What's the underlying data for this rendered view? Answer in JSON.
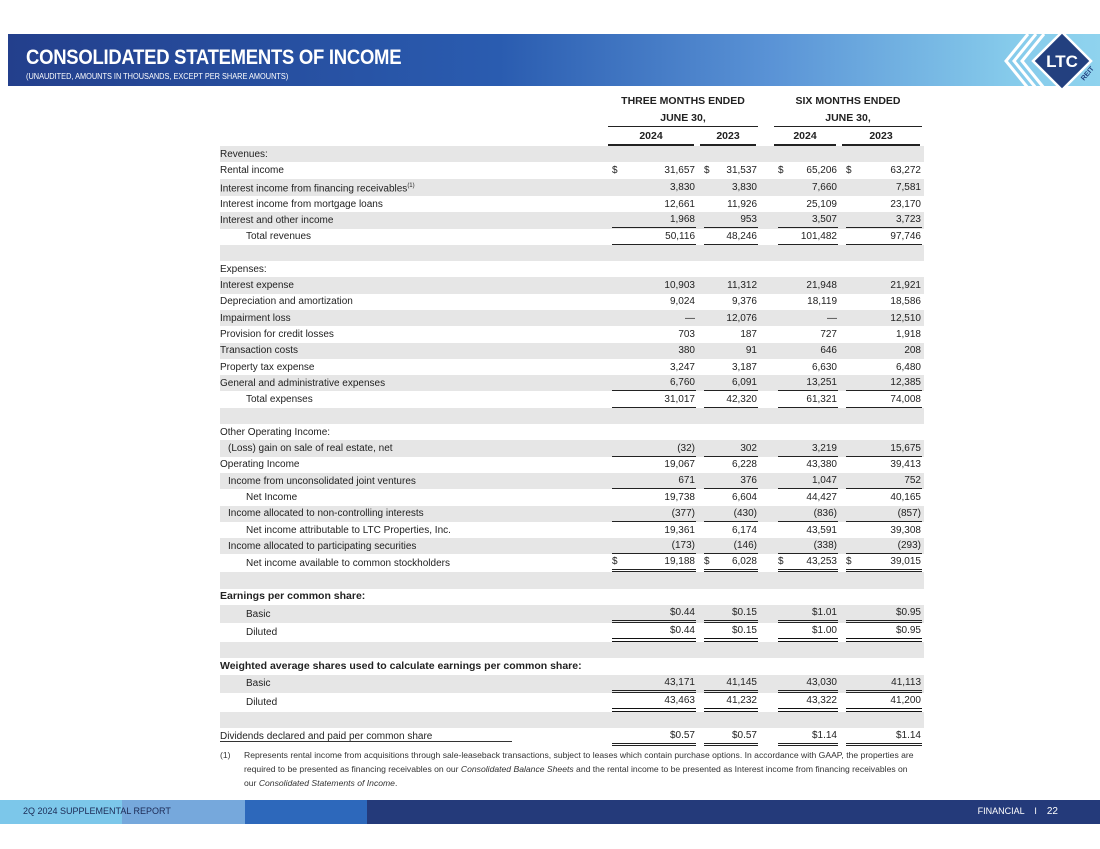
{
  "header": {
    "title": "CONSOLIDATED STATEMENTS OF INCOME",
    "subtitle": "(UNAUDITED, AMOUNTS IN THOUSANDS, EXCEPT PER SHARE AMOUNTS)",
    "logo_text": "LTC",
    "logo_subtext": "REIT"
  },
  "colors": {
    "banner_dark": "#233f8c",
    "banner_light": "#8fd3ee",
    "row_shade": "#e6e6e6",
    "footer_navy": "#243a7a"
  },
  "columns": {
    "group1_line1": "THREE MONTHS ENDED",
    "group1_line2": "JUNE 30,",
    "group2_line1": "SIX MONTHS ENDED",
    "group2_line2": "JUNE 30,",
    "years": [
      "2024",
      "2023",
      "2024",
      "2023"
    ]
  },
  "rows": [
    {
      "label": "Revenues:",
      "indent": 0,
      "values": [
        "",
        "",
        "",
        ""
      ]
    },
    {
      "label": "Rental income",
      "indent": 0,
      "dollar": true,
      "values": [
        "31,657",
        "31,537",
        "65,206",
        "63,272"
      ]
    },
    {
      "label": "Interest income from financing receivables",
      "sup": "(1)",
      "indent": 0,
      "values": [
        "3,830",
        "3,830",
        "7,660",
        "7,581"
      ]
    },
    {
      "label": "Interest income from mortgage loans",
      "indent": 0,
      "values": [
        "12,661",
        "11,926",
        "25,109",
        "23,170"
      ]
    },
    {
      "label": "Interest and other income",
      "indent": 0,
      "rule": "single",
      "values": [
        "1,968",
        "953",
        "3,507",
        "3,723"
      ]
    },
    {
      "label": "Total revenues",
      "indent": 2,
      "rule": "single",
      "values": [
        "50,116",
        "48,246",
        "101,482",
        "97,746"
      ]
    },
    {
      "label": "",
      "indent": 0,
      "values": [
        "",
        "",
        "",
        ""
      ]
    },
    {
      "label": "Expenses:",
      "indent": 0,
      "values": [
        "",
        "",
        "",
        ""
      ]
    },
    {
      "label": "Interest expense",
      "indent": 0,
      "values": [
        "10,903",
        "11,312",
        "21,948",
        "21,921"
      ]
    },
    {
      "label": "Depreciation and amortization",
      "indent": 0,
      "values": [
        "9,024",
        "9,376",
        "18,119",
        "18,586"
      ]
    },
    {
      "label": "Impairment loss",
      "indent": 0,
      "values": [
        "—",
        "12,076",
        "—",
        "12,510"
      ]
    },
    {
      "label": "Provision for credit losses",
      "indent": 0,
      "values": [
        "703",
        "187",
        "727",
        "1,918"
      ]
    },
    {
      "label": "Transaction costs",
      "indent": 0,
      "values": [
        "380",
        "91",
        "646",
        "208"
      ]
    },
    {
      "label": "Property tax expense",
      "indent": 0,
      "values": [
        "3,247",
        "3,187",
        "6,630",
        "6,480"
      ]
    },
    {
      "label": "General and administrative expenses",
      "indent": 0,
      "rule": "single",
      "values": [
        "6,760",
        "6,091",
        "13,251",
        "12,385"
      ]
    },
    {
      "label": "Total expenses",
      "indent": 2,
      "rule": "single",
      "values": [
        "31,017",
        "42,320",
        "61,321",
        "74,008"
      ]
    },
    {
      "label": "",
      "indent": 0,
      "values": [
        "",
        "",
        "",
        ""
      ]
    },
    {
      "label": "Other Operating Income:",
      "indent": 0,
      "values": [
        "",
        "",
        "",
        ""
      ]
    },
    {
      "label": "(Loss) gain on sale of real estate, net",
      "indent": 1,
      "rule": "single",
      "values": [
        "(32)",
        "302",
        "3,219",
        "15,675"
      ]
    },
    {
      "label": "Operating Income",
      "indent": 0,
      "values": [
        "19,067",
        "6,228",
        "43,380",
        "39,413"
      ]
    },
    {
      "label": "Income from unconsolidated joint ventures",
      "indent": 1,
      "rule": "single",
      "values": [
        "671",
        "376",
        "1,047",
        "752"
      ]
    },
    {
      "label": "Net Income",
      "indent": 2,
      "values": [
        "19,738",
        "6,604",
        "44,427",
        "40,165"
      ]
    },
    {
      "label": "Income allocated to non-controlling interests",
      "indent": 1,
      "rule": "single",
      "values": [
        "(377)",
        "(430)",
        "(836)",
        "(857)"
      ]
    },
    {
      "label": "Net income attributable to LTC Properties, Inc.",
      "indent": 2,
      "values": [
        "19,361",
        "6,174",
        "43,591",
        "39,308"
      ]
    },
    {
      "label": "Income allocated to participating securities",
      "indent": 1,
      "rule": "single",
      "values": [
        "(173)",
        "(146)",
        "(338)",
        "(293)"
      ]
    },
    {
      "label": "Net income available to common stockholders",
      "indent": 2,
      "dollar": true,
      "rule": "double",
      "values": [
        "19,188",
        "6,028",
        "43,253",
        "39,015"
      ]
    },
    {
      "label": "",
      "indent": 0,
      "values": [
        "",
        "",
        "",
        ""
      ]
    },
    {
      "label": "Earnings per common share:",
      "indent": 0,
      "bold": true,
      "values": [
        "",
        "",
        "",
        ""
      ]
    },
    {
      "label": "Basic",
      "indent": 2,
      "rule": "double",
      "values": [
        "$0.44",
        "$0.15",
        "$1.01",
        "$0.95"
      ]
    },
    {
      "label": "Diluted",
      "indent": 2,
      "rule": "thick",
      "values": [
        "$0.44",
        "$0.15",
        "$1.00",
        "$0.95"
      ]
    },
    {
      "label": "",
      "indent": 0,
      "values": [
        "",
        "",
        "",
        ""
      ]
    },
    {
      "label": "Weighted average shares used to calculate earnings per common share:",
      "indent": 0,
      "bold": true,
      "values": [
        "",
        "",
        "",
        ""
      ]
    },
    {
      "label": "Basic",
      "indent": 2,
      "rule": "double",
      "values": [
        "43,171",
        "41,145",
        "43,030",
        "41,113"
      ]
    },
    {
      "label": "Diluted",
      "indent": 2,
      "rule": "thick",
      "values": [
        "43,463",
        "41,232",
        "43,322",
        "41,200"
      ]
    },
    {
      "label": "",
      "indent": 0,
      "values": [
        "",
        "",
        "",
        ""
      ]
    },
    {
      "label": "Dividends declared and paid per common share",
      "indent": 0,
      "rule": "double",
      "values": [
        "$0.57",
        "$0.57",
        "$1.14",
        "$1.14"
      ]
    }
  ],
  "footnote": {
    "marker": "(1)",
    "text_1": "Represents rental income from acquisitions through sale-leaseback transactions, subject to leases which contain purchase options. In accordance with GAAP, the properties are required to be presented as financing receivables on our ",
    "italic_1": "Consolidated Balance Sheets",
    "text_2": " and the rental income to be presented as Interest income from financing receivables on our ",
    "italic_2": "Consolidated Statements of Income",
    "text_3": "."
  },
  "footer": {
    "left": "2Q 2024 SUPPLEMENTAL REPORT",
    "section": "FINANCIAL",
    "separator": "I",
    "page": "22"
  }
}
